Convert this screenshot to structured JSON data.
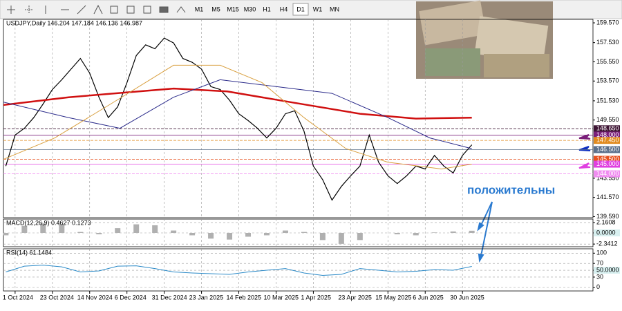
{
  "toolbar": {
    "timeframes": [
      "M1",
      "M5",
      "M15",
      "M30",
      "H1",
      "H4",
      "D1",
      "W1",
      "MN"
    ],
    "active_index": 6
  },
  "chart_data": [
    {
      "type": "line",
      "title": "USDJPY,Daily  146.204 147.184 146.136 146.987",
      "annotation": "положительны",
      "xlim": [
        -1,
        252
      ],
      "ylim": [
        139.48,
        159.93
      ],
      "xticks": [
        {
          "value": 4,
          "label": "1 Oct 2024"
        },
        {
          "value": 20,
          "label": "23 Oct 2024"
        },
        {
          "value": 36,
          "label": "14 Nov 2024"
        },
        {
          "value": 52,
          "label": "6 Dec 2024"
        },
        {
          "value": 68,
          "label": "31 Dec 2024"
        },
        {
          "value": 84,
          "label": "23 Jan 2025"
        },
        {
          "value": 100,
          "label": "14 Feb 2025"
        },
        {
          "value": 116,
          "label": "10 Mar 2025"
        },
        {
          "value": 132,
          "label": "1 Apr 2025"
        },
        {
          "value": 148,
          "label": "23 Apr 2025"
        },
        {
          "value": 164,
          "label": "15 May 2025"
        },
        {
          "value": 180,
          "label": "6 Jun 2025"
        },
        {
          "value": 196,
          "label": "30 Jun 2025"
        }
      ],
      "yticks": [
        {
          "value": 159.57,
          "label": "159.570"
        },
        {
          "value": 157.53,
          "label": "157.530"
        },
        {
          "value": 155.55,
          "label": "155.550"
        },
        {
          "value": 153.57,
          "label": "153.570"
        },
        {
          "value": 151.53,
          "label": "151.530"
        },
        {
          "value": 149.55,
          "label": "149.550"
        },
        {
          "value": 143.55,
          "label": "143.550"
        },
        {
          "value": 141.57,
          "label": "141.570"
        },
        {
          "value": 139.59,
          "label": "139.590"
        }
      ],
      "levels": [
        {
          "value": 148.65,
          "label": "148.650",
          "color": "#3d1433"
        },
        {
          "value": 148.0,
          "label": "148.000",
          "color": "#7a1f7a"
        },
        {
          "value": 147.45,
          "label": "147.450",
          "color": "#e08a1e"
        },
        {
          "value": 146.5,
          "label": "146.500",
          "color": "#5a6f8a"
        },
        {
          "value": 145.5,
          "label": "145.500",
          "color": "#e8501e"
        },
        {
          "value": 145.0,
          "label": "145.000",
          "color": "#e040e0"
        },
        {
          "value": 144.0,
          "label": "144.000",
          "color": "#f08cf0"
        }
      ],
      "series": [
        {
          "color": "#000000",
          "width": 1.2,
          "x": [
            0,
            4,
            8,
            12,
            16,
            20,
            24,
            28,
            32,
            36,
            40,
            44,
            48,
            52,
            56,
            60,
            64,
            68,
            72,
            76,
            80,
            84,
            88,
            92,
            96,
            100,
            104,
            108,
            112,
            116,
            120,
            124,
            128,
            132,
            136,
            140,
            144,
            148,
            152,
            156,
            160,
            164,
            168,
            172,
            176,
            180,
            184,
            188,
            192,
            196,
            200
          ],
          "values": [
            144.8,
            148.0,
            148.7,
            149.8,
            151.2,
            152.7,
            153.7,
            154.8,
            155.9,
            154.4,
            151.9,
            149.8,
            150.9,
            153.4,
            156.2,
            157.3,
            156.9,
            158.0,
            157.5,
            155.9,
            155.5,
            154.8,
            153.0,
            152.7,
            151.6,
            150.2,
            149.5,
            148.7,
            147.7,
            148.7,
            150.2,
            150.5,
            148.4,
            144.8,
            143.4,
            141.3,
            142.7,
            143.8,
            144.8,
            148.0,
            145.2,
            143.8,
            143.0,
            143.8,
            144.8,
            144.5,
            145.9,
            144.8,
            144.1,
            145.9,
            147.0
          ]
        },
        {
          "color": "#d01010",
          "width": 2.5,
          "x": [
            -1,
            27,
            72,
            95,
            122,
            152,
            176,
            200
          ],
          "values": [
            151.1,
            151.9,
            152.8,
            152.5,
            151.4,
            150.2,
            149.7,
            149.8
          ]
        },
        {
          "color": "#2a2a8a",
          "width": 1,
          "x": [
            -1,
            27,
            49,
            72,
            92,
            116,
            140,
            164,
            182,
            200
          ],
          "values": [
            151.4,
            149.8,
            148.7,
            151.9,
            153.7,
            153.0,
            152.3,
            149.8,
            147.7,
            146.6
          ]
        },
        {
          "color": "#d9a040",
          "width": 1,
          "x": [
            -1,
            21,
            45,
            72,
            92,
            110,
            128,
            146,
            164,
            187,
            200
          ],
          "values": [
            145.5,
            147.7,
            151.2,
            155.2,
            155.2,
            153.4,
            149.8,
            146.6,
            145.2,
            144.5,
            145.0
          ]
        }
      ]
    },
    {
      "type": "bar",
      "title": "MACD(12,26,9) 0.4627 0.1273",
      "xlim": [
        -1,
        252
      ],
      "ylim": [
        -2.9,
        2.9
      ],
      "yticks": [
        2.1608,
        {
          "value": 0,
          "label": "0.0000"
        },
        -2.3412
      ],
      "series": [
        {
          "color": "#b0b0b0",
          "x": [
            0,
            8,
            16,
            24,
            32,
            40,
            48,
            56,
            64,
            72,
            80,
            88,
            96,
            104,
            112,
            120,
            128,
            136,
            144,
            152,
            160,
            168,
            176,
            184,
            192,
            200
          ],
          "values": [
            -0.5,
            1.5,
            2.0,
            1.8,
            0.2,
            -0.3,
            1.0,
            1.8,
            1.6,
            0.5,
            -0.5,
            -1.2,
            -1.4,
            -0.8,
            -0.5,
            0.5,
            0.2,
            -1.5,
            -2.3,
            -1.5,
            0.0,
            -0.3,
            -0.5,
            0.1,
            0.3,
            0.46
          ]
        }
      ]
    },
    {
      "type": "line",
      "title": "RSI(14) 61.1484",
      "xlim": [
        -1,
        252
      ],
      "ylim": [
        -10.6,
        112.8
      ],
      "yticks": [
        100,
        70,
        {
          "value": 50,
          "label": "50.0000"
        },
        30,
        0
      ],
      "series": [
        {
          "color": "#2b8ac8",
          "width": 1,
          "x": [
            0,
            8,
            16,
            24,
            32,
            40,
            48,
            56,
            64,
            72,
            80,
            88,
            96,
            104,
            112,
            120,
            128,
            136,
            144,
            152,
            160,
            168,
            176,
            184,
            192,
            200
          ],
          "values": [
            45,
            62,
            65,
            60,
            45,
            48,
            62,
            63,
            55,
            45,
            42,
            40,
            38,
            45,
            50,
            55,
            42,
            35,
            38,
            55,
            50,
            45,
            47,
            52,
            50,
            61.1484
          ]
        }
      ]
    }
  ]
}
